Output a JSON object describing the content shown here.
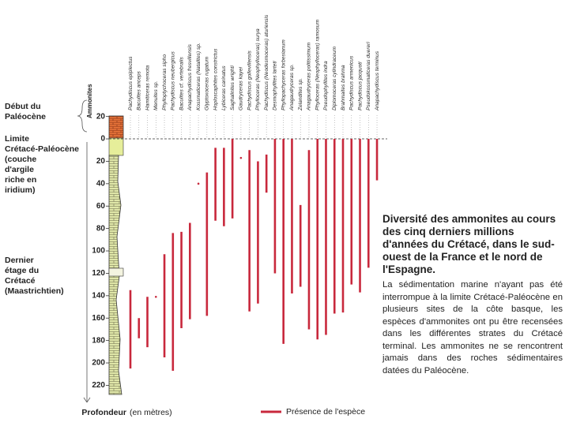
{
  "chart_data": {
    "type": "range",
    "column_label": "Ammonites",
    "categories": [
      "Pachydiscus epiplectus",
      "Baculites anceps",
      "Hamiticeras remota",
      "Menuites sp.",
      "Phylloptychoceras sipho",
      "Pachydiscus neubergicus",
      "Baculites cf. vertebralis",
      "Anapachydiscus fresvillensis",
      "Kossmaticeras (Natalites) sp.",
      "Glyptoxoceras rugatum",
      "Hoploscaphites constrictus",
      "Lybiceras carinatus",
      "Saghalinites wrighti",
      "Gaudryceras kayei",
      "Pachydiscus gollevillensis",
      "Phylloceras (Neophylloceras) surya",
      "Pachydiscus (Neodesmoceras) aturiensis",
      "Desmophyllites larteti",
      "Phyllopachyceras forbesianum",
      "Anagaudryceras sp.",
      "Zelandites sp.",
      "Anagaudryceras politissimum",
      "Phylloceras (Neophylloceras) ramosum",
      "Pseudophyllites indra",
      "Diplomoceras cylindraceum",
      "Brahmaites brahma",
      "Pachydiscus armenicus",
      "Pachydiscus jacquoti",
      "Pseudokossmaticeras duereri",
      "Anapachydiscus terminus"
    ],
    "ranges": [
      [
        135,
        205
      ],
      [
        160,
        178
      ],
      [
        141,
        186
      ],
      [
        141,
        141
      ],
      [
        103,
        195
      ],
      [
        84,
        207
      ],
      [
        83,
        169
      ],
      [
        75,
        161
      ],
      [
        40,
        40
      ],
      [
        30,
        158
      ],
      [
        8,
        73
      ],
      [
        8,
        78
      ],
      [
        0,
        71
      ],
      [
        17,
        17
      ],
      [
        10,
        154
      ],
      [
        20,
        147
      ],
      [
        14,
        48
      ],
      [
        0,
        120
      ],
      [
        0,
        183
      ],
      [
        0,
        138
      ],
      [
        59,
        132
      ],
      [
        10,
        170
      ],
      [
        0,
        179
      ],
      [
        0,
        175
      ],
      [
        0,
        156
      ],
      [
        0,
        155
      ],
      [
        0,
        130
      ],
      [
        0,
        137
      ],
      [
        0,
        115
      ],
      [
        0,
        37
      ]
    ],
    "color": "#c8283c",
    "ylim": [
      -22,
      228
    ],
    "y_inverted": true,
    "yticks": [
      {
        "value": -20,
        "label": "20"
      },
      0,
      20,
      40,
      60,
      80,
      100,
      120,
      140,
      160,
      180,
      200,
      220
    ],
    "axis_label": "Profondeur",
    "axis_unit": "(en mètres)",
    "legend": "Présence de l'espèce",
    "side_labels": [
      "Début du Paléocène",
      "Limite Crétacé-Paléocène (couche d'argile riche en iridium)",
      "Dernier étage du Crétacé (Maastrichtien)"
    ]
  },
  "note": {
    "title": "Diversité des ammonites au cours des cinq derniers millions d'années du Crétacé, dans le sud-ouest de la France et le nord de l'Espagne.",
    "text": "La sédimentation marine n'ayant pas été interrompue à la limite Crétacé-Paléocène en plusieurs sites de la côte basque, les espèces d'ammonites ont pu être recensées dans les différentes strates du Crétacé terminal. Les ammonites ne se rencontrent jamais dans des roches sédimentaires datées du Paléocène."
  }
}
